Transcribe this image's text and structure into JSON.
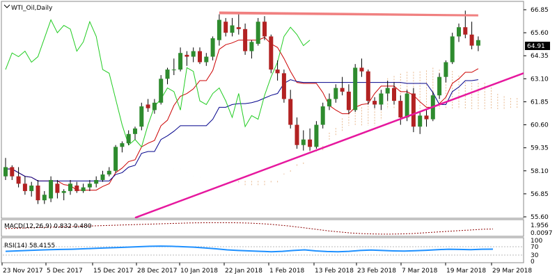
{
  "window": {
    "title": "WTI_Oil,Daily",
    "icon": "chart-window-icon"
  },
  "colors": {
    "bull": "#2e8b2e",
    "bear": "#b22222",
    "tenkan": "#cc0000",
    "kijun": "#00008b",
    "chikou": "#22cc22",
    "cloud": "#e8b98f",
    "trendline": "#e6189e",
    "resistance": "#f08080",
    "price_box": "#000000",
    "macd": "#8b0000",
    "rsi": "#1e90ff",
    "grid": "#c0c0c0"
  },
  "price_axis": {
    "ticks": [
      "66.85",
      "65.60",
      "64.35",
      "63.10",
      "61.85",
      "60.60",
      "59.35",
      "58.10",
      "56.85",
      "55.60"
    ],
    "current_label": "64.91"
  },
  "time_axis": {
    "labels": [
      "23 Nov 2017",
      "5 Dec 2017",
      "15 Dec 2017",
      "28 Dec 2017",
      "10 Jan 2018",
      "22 Jan 2018",
      "1 Feb 2018",
      "13 Feb 2018",
      "23 Feb 2018",
      "7 Mar 2018",
      "19 Mar 2018",
      "29 Mar 2018"
    ]
  },
  "macd_panel": {
    "label": "MACD(12,26,9) 0.832 0.480",
    "ticks": [
      "1.956",
      "0.0097"
    ]
  },
  "rsi_panel": {
    "label": "RSI(14) 58.4155",
    "ticks": [
      "100",
      "70",
      "30",
      "0"
    ]
  },
  "chart_data": {
    "type": "candlestick",
    "symbol": "WTI_Oil",
    "timeframe": "Daily",
    "ylim": [
      55.6,
      66.85
    ],
    "candles": [
      [
        57.8,
        58.8,
        57.6,
        58.3
      ],
      [
        58.3,
        58.4,
        57.6,
        57.8
      ],
      [
        57.8,
        58.3,
        57.2,
        57.4
      ],
      [
        57.4,
        57.8,
        56.8,
        57.0
      ],
      [
        57.0,
        57.5,
        56.7,
        57.3
      ],
      [
        57.3,
        57.6,
        56.3,
        56.5
      ],
      [
        56.5,
        57.0,
        56.3,
        56.8
      ],
      [
        56.6,
        57.8,
        56.4,
        57.6
      ],
      [
        57.4,
        57.6,
        56.6,
        56.9
      ],
      [
        56.9,
        57.1,
        56.5,
        57.0
      ],
      [
        57.0,
        57.6,
        56.8,
        57.4
      ],
      [
        57.3,
        57.5,
        56.9,
        57.0
      ],
      [
        57.0,
        57.4,
        56.9,
        57.2
      ],
      [
        57.2,
        57.6,
        57.0,
        57.4
      ],
      [
        57.4,
        57.8,
        57.2,
        57.6
      ],
      [
        57.6,
        58.1,
        57.5,
        57.9
      ],
      [
        57.9,
        58.3,
        57.8,
        58.1
      ],
      [
        58.1,
        59.5,
        58.0,
        59.4
      ],
      [
        59.4,
        59.7,
        59.1,
        59.6
      ],
      [
        59.6,
        60.3,
        59.5,
        60.1
      ],
      [
        60.1,
        60.5,
        59.8,
        60.4
      ],
      [
        60.5,
        61.8,
        60.3,
        61.6
      ],
      [
        61.7,
        62.0,
        61.3,
        61.5
      ],
      [
        61.4,
        62.0,
        61.2,
        61.8
      ],
      [
        61.8,
        63.3,
        61.7,
        63.1
      ],
      [
        63.1,
        63.7,
        62.8,
        63.6
      ],
      [
        63.6,
        64.2,
        63.3,
        63.6
      ],
      [
        63.6,
        64.8,
        63.5,
        64.5
      ],
      [
        64.4,
        64.6,
        63.8,
        64.3
      ],
      [
        64.3,
        64.8,
        64.0,
        64.6
      ],
      [
        64.6,
        64.8,
        63.9,
        64.0
      ],
      [
        64.0,
        64.5,
        63.8,
        64.3
      ],
      [
        64.3,
        65.4,
        64.1,
        65.3
      ],
      [
        65.2,
        66.6,
        64.9,
        66.3
      ],
      [
        66.2,
        66.4,
        65.4,
        65.6
      ],
      [
        65.6,
        66.4,
        65.4,
        66.0
      ],
      [
        65.9,
        66.6,
        65.5,
        65.8
      ],
      [
        65.8,
        66.1,
        64.4,
        64.6
      ],
      [
        64.6,
        65.2,
        64.2,
        65.1
      ],
      [
        65.0,
        66.4,
        64.9,
        66.2
      ],
      [
        66.2,
        66.5,
        65.2,
        65.4
      ],
      [
        65.4,
        65.5,
        63.4,
        63.6
      ],
      [
        63.6,
        64.1,
        63.0,
        63.4
      ],
      [
        63.4,
        63.6,
        61.8,
        62.0
      ],
      [
        62.0,
        62.5,
        60.4,
        60.6
      ],
      [
        60.6,
        61.0,
        59.3,
        59.5
      ],
      [
        59.5,
        60.3,
        59.2,
        59.8
      ],
      [
        59.8,
        60.4,
        59.2,
        59.4
      ],
      [
        59.4,
        60.8,
        59.3,
        60.6
      ],
      [
        60.6,
        61.8,
        60.4,
        61.6
      ],
      [
        61.6,
        62.3,
        61.4,
        62.0
      ],
      [
        62.0,
        62.8,
        61.8,
        62.6
      ],
      [
        62.6,
        63.2,
        62.2,
        62.4
      ],
      [
        62.4,
        62.8,
        61.2,
        61.4
      ],
      [
        61.4,
        63.9,
        61.3,
        63.7
      ],
      [
        63.7,
        64.2,
        63.2,
        63.5
      ],
      [
        63.5,
        63.6,
        61.7,
        61.9
      ],
      [
        61.9,
        62.1,
        61.5,
        61.7
      ],
      [
        61.7,
        62.5,
        61.4,
        62.3
      ],
      [
        62.3,
        63.0,
        61.9,
        62.6
      ],
      [
        62.6,
        62.9,
        61.7,
        61.9
      ],
      [
        61.9,
        62.2,
        60.6,
        61.0
      ],
      [
        61.0,
        62.5,
        60.8,
        62.3
      ],
      [
        62.3,
        62.6,
        60.2,
        60.5
      ],
      [
        60.5,
        61.3,
        60.1,
        61.1
      ],
      [
        61.1,
        61.4,
        60.5,
        60.9
      ],
      [
        60.9,
        62.4,
        60.8,
        62.2
      ],
      [
        62.2,
        63.4,
        62.0,
        63.2
      ],
      [
        63.2,
        64.1,
        62.9,
        64.0
      ],
      [
        64.0,
        65.6,
        63.9,
        65.4
      ],
      [
        65.4,
        66.1,
        65.1,
        65.9
      ],
      [
        65.9,
        66.8,
        65.3,
        65.5
      ],
      [
        65.5,
        66.2,
        64.7,
        64.9
      ],
      [
        64.9,
        65.4,
        64.6,
        65.2
      ]
    ],
    "resistance": [
      [
        33,
        66.72
      ],
      [
        73,
        66.56
      ]
    ],
    "trendline": [
      [
        20,
        55.55
      ],
      [
        75,
        62.75
      ]
    ],
    "macd_values": [
      0.9,
      0.95,
      1.0,
      1.05,
      1.1,
      1.15,
      1.2,
      1.25,
      1.3,
      1.35,
      1.4,
      1.45,
      1.5,
      1.55,
      1.6,
      1.65,
      1.7,
      1.75,
      1.8,
      1.82,
      1.84,
      1.85,
      1.84,
      1.82,
      1.78,
      1.7,
      1.6,
      1.45,
      1.3,
      1.1,
      0.9,
      0.7,
      0.5,
      0.35,
      0.2,
      0.1,
      0.05,
      0.02,
      0.02,
      0.05,
      0.1,
      0.2,
      0.3,
      0.4,
      0.5,
      0.6,
      0.7,
      0.8,
      0.83
    ],
    "rsi_values": [
      48,
      50,
      52,
      54,
      56,
      57,
      58,
      60,
      62,
      64,
      66,
      68,
      70,
      72,
      73,
      72,
      70,
      68,
      64,
      60,
      55,
      52,
      50,
      48,
      46,
      48,
      52,
      55,
      50,
      47,
      46,
      48,
      52,
      54,
      52,
      50,
      49,
      51,
      53,
      56,
      58,
      57,
      56,
      58,
      58.4
    ]
  }
}
